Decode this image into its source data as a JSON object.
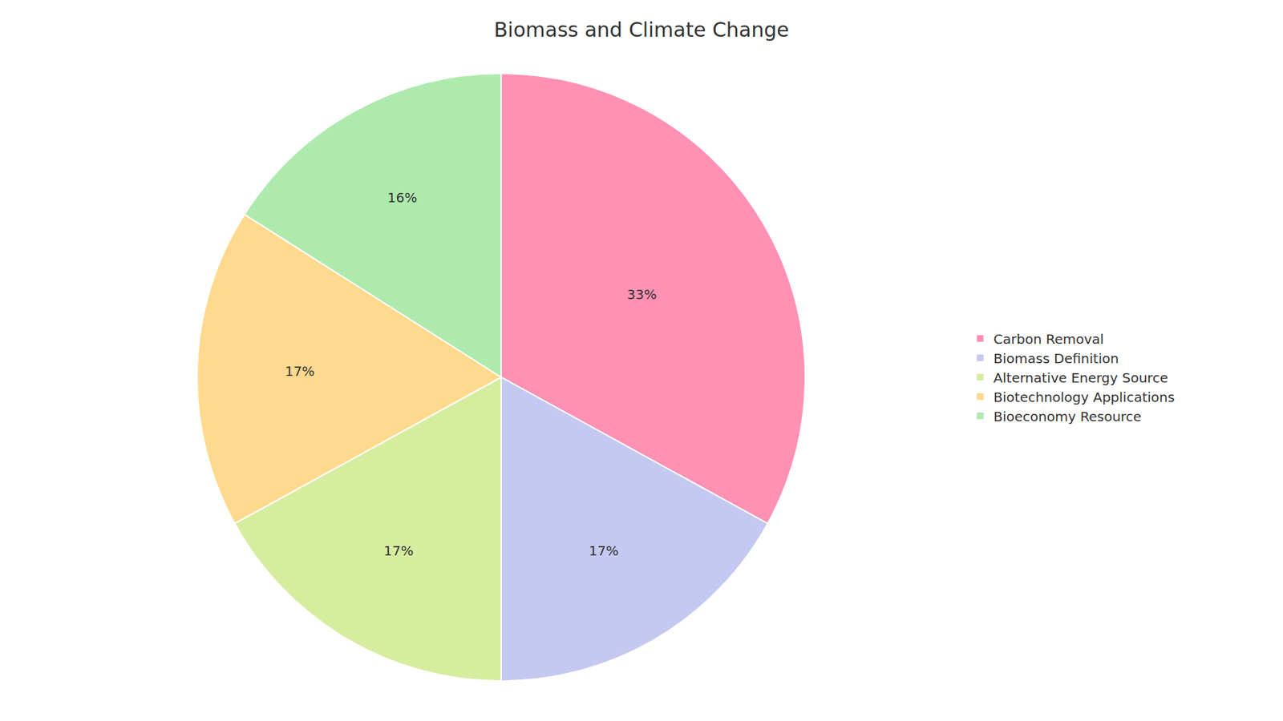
{
  "chart_data": {
    "type": "pie",
    "title": "Biomass and Climate Change",
    "categories": [
      "Carbon Removal",
      "Biomass Definition",
      "Alternative Energy Source",
      "Biotechnology Applications",
      "Bioeconomy Resource"
    ],
    "values": [
      33,
      17,
      17,
      17,
      16
    ],
    "value_labels": [
      "33%",
      "17%",
      "17%",
      "17%",
      "16%"
    ],
    "colors": [
      "#FF91B4",
      "#C5C8F0",
      "#D6EDA0",
      "#FFD98E",
      "#AEEAAE"
    ],
    "data_labels": true,
    "legend": "right"
  }
}
